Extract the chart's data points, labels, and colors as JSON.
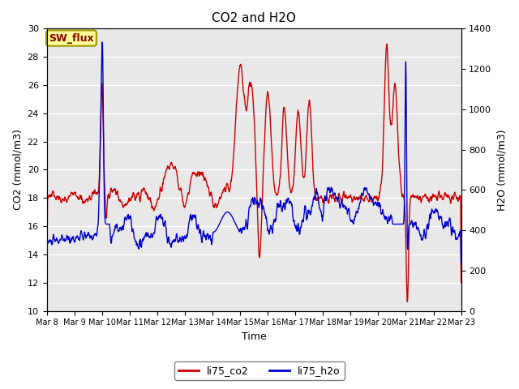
{
  "title": "CO2 and H2O",
  "xlabel": "Time",
  "ylabel_left": "CO2 (mmol/m3)",
  "ylabel_right": "H2O (mmol/m3)",
  "xlim_days": [
    0,
    15
  ],
  "ylim_left": [
    10,
    30
  ],
  "ylim_right": [
    0,
    1400
  ],
  "yticks_left": [
    10,
    12,
    14,
    16,
    18,
    20,
    22,
    24,
    26,
    28,
    30
  ],
  "yticks_right": [
    0,
    200,
    400,
    600,
    800,
    1000,
    1200,
    1400
  ],
  "xtick_labels": [
    "Mar 8",
    "Mar 9",
    "Mar 10",
    "Mar 11",
    "Mar 12",
    "Mar 13",
    "Mar 14",
    "Mar 15",
    "Mar 16",
    "Mar 17",
    "Mar 18",
    "Mar 19",
    "Mar 20",
    "Mar 21",
    "Mar 22",
    "Mar 23"
  ],
  "co2_color": "#cc0000",
  "h2o_color": "#0000cc",
  "background_color": "#e8e8e8",
  "legend_box_color": "#ffff99",
  "legend_box_edge": "#999900",
  "annotation_text": "SW_flux",
  "annotation_color": "#8b0000",
  "grid_color": "#ffffff",
  "line_width": 1.0
}
